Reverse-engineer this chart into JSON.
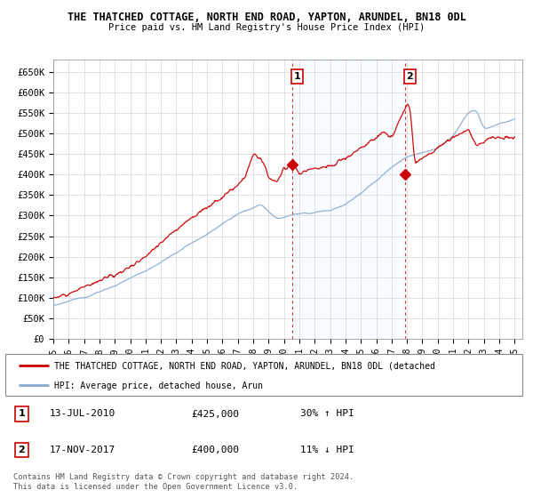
{
  "title": "THE THATCHED COTTAGE, NORTH END ROAD, YAPTON, ARUNDEL, BN18 0DL",
  "subtitle": "Price paid vs. HM Land Registry's House Price Index (HPI)",
  "ylabel_ticks": [
    "£0",
    "£50K",
    "£100K",
    "£150K",
    "£200K",
    "£250K",
    "£300K",
    "£350K",
    "£400K",
    "£450K",
    "£500K",
    "£550K",
    "£600K",
    "£650K"
  ],
  "ytick_values": [
    0,
    50000,
    100000,
    150000,
    200000,
    250000,
    300000,
    350000,
    400000,
    450000,
    500000,
    550000,
    600000,
    650000
  ],
  "ylim": [
    0,
    680000
  ],
  "xlim_start": 1995.0,
  "xlim_end": 2025.5,
  "sale1_x": 2010.54,
  "sale1_y": 425000,
  "sale1_label": "1",
  "sale1_date": "13-JUL-2010",
  "sale1_price": "£425,000",
  "sale1_hpi": "30% ↑ HPI",
  "sale2_x": 2017.88,
  "sale2_y": 400000,
  "sale2_label": "2",
  "sale2_date": "17-NOV-2017",
  "sale2_price": "£400,000",
  "sale2_hpi": "11% ↓ HPI",
  "red_color": "#cc0000",
  "blue_color": "#88aacc",
  "shading_color": "#ddeeff",
  "legend_label_red": "THE THATCHED COTTAGE, NORTH END ROAD, YAPTON, ARUNDEL, BN18 0DL (detached",
  "legend_label_blue": "HPI: Average price, detached house, Arun",
  "footer1": "Contains HM Land Registry data © Crown copyright and database right 2024.",
  "footer2": "This data is licensed under the Open Government Licence v3.0."
}
